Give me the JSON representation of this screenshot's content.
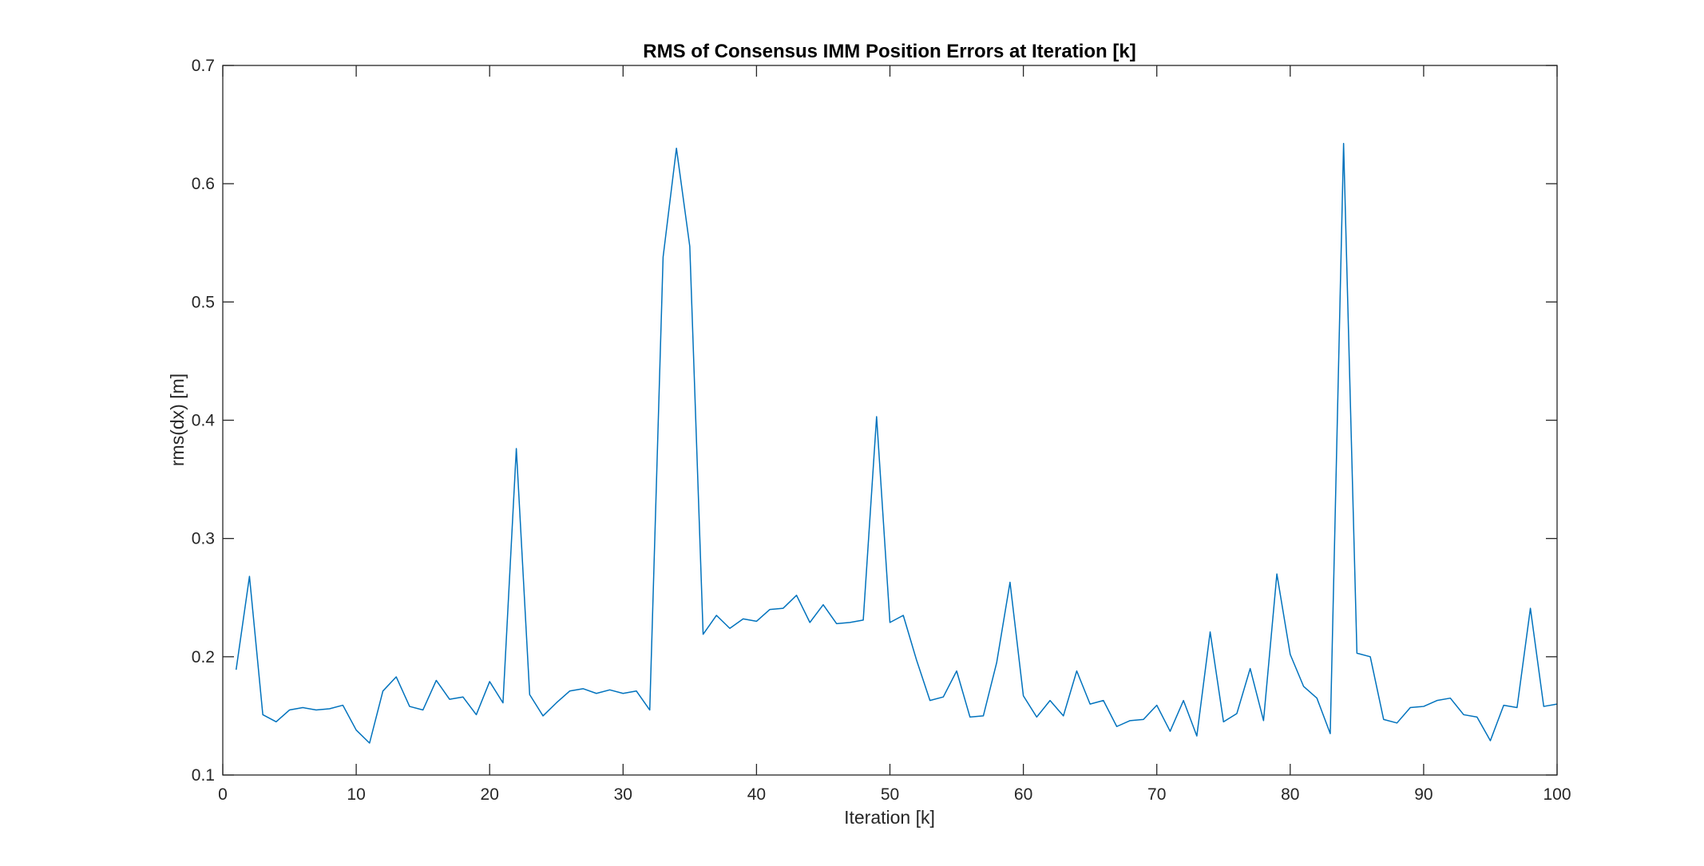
{
  "chart_data": {
    "type": "line",
    "title": "RMS of Consensus IMM Position Errors at Iteration [k]",
    "xlabel": "Iteration [k]",
    "ylabel": "rms(dx) [m]",
    "xlim": [
      0,
      100
    ],
    "ylim": [
      0.1,
      0.7
    ],
    "xticks": [
      0,
      10,
      20,
      30,
      40,
      50,
      60,
      70,
      80,
      90,
      100
    ],
    "xtick_labels": [
      "0",
      "10",
      "20",
      "30",
      "40",
      "50",
      "60",
      "70",
      "80",
      "90",
      "100"
    ],
    "yticks": [
      0.1,
      0.2,
      0.3,
      0.4,
      0.5,
      0.6,
      0.7
    ],
    "ytick_labels": [
      "0.1",
      "0.2",
      "0.3",
      "0.4",
      "0.5",
      "0.6",
      "0.7"
    ],
    "grid": false,
    "box": true,
    "line_color": "#0072BD",
    "series": [
      {
        "x": [
          1,
          2,
          3,
          4,
          5,
          6,
          7,
          8,
          9,
          10,
          11,
          12,
          13,
          14,
          15,
          16,
          17,
          18,
          19,
          20,
          21,
          22,
          23,
          24,
          25,
          26,
          27,
          28,
          29,
          30,
          31,
          32,
          33,
          34,
          35,
          36,
          37,
          38,
          39,
          40,
          41,
          42,
          43,
          44,
          45,
          46,
          47,
          48,
          49,
          50,
          51,
          52,
          53,
          54,
          55,
          56,
          57,
          58,
          59,
          60,
          61,
          62,
          63,
          64,
          65,
          66,
          67,
          68,
          69,
          70,
          71,
          72,
          73,
          74,
          75,
          76,
          77,
          78,
          79,
          80,
          81,
          82,
          83,
          84,
          85,
          86,
          87,
          88,
          89,
          90,
          91,
          92,
          93,
          94,
          95,
          96,
          97,
          98,
          99,
          100
        ],
        "values": [
          0.189,
          0.268,
          0.151,
          0.145,
          0.155,
          0.157,
          0.155,
          0.156,
          0.159,
          0.138,
          0.127,
          0.171,
          0.183,
          0.158,
          0.155,
          0.18,
          0.164,
          0.166,
          0.151,
          0.179,
          0.161,
          0.376,
          0.168,
          0.15,
          0.161,
          0.171,
          0.173,
          0.169,
          0.172,
          0.169,
          0.171,
          0.155,
          0.538,
          0.63,
          0.547,
          0.219,
          0.235,
          0.224,
          0.232,
          0.23,
          0.24,
          0.241,
          0.252,
          0.229,
          0.244,
          0.228,
          0.229,
          0.231,
          0.403,
          0.229,
          0.235,
          0.197,
          0.163,
          0.166,
          0.188,
          0.149,
          0.15,
          0.195,
          0.263,
          0.167,
          0.149,
          0.163,
          0.15,
          0.188,
          0.16,
          0.163,
          0.141,
          0.146,
          0.147,
          0.159,
          0.137,
          0.163,
          0.133,
          0.221,
          0.145,
          0.152,
          0.19,
          0.146,
          0.27,
          0.202,
          0.175,
          0.165,
          0.135,
          0.634,
          0.203,
          0.2,
          0.147,
          0.144,
          0.157,
          0.158,
          0.163,
          0.165,
          0.151,
          0.149,
          0.129,
          0.159,
          0.157,
          0.241,
          0.158,
          0.16
        ]
      }
    ]
  }
}
